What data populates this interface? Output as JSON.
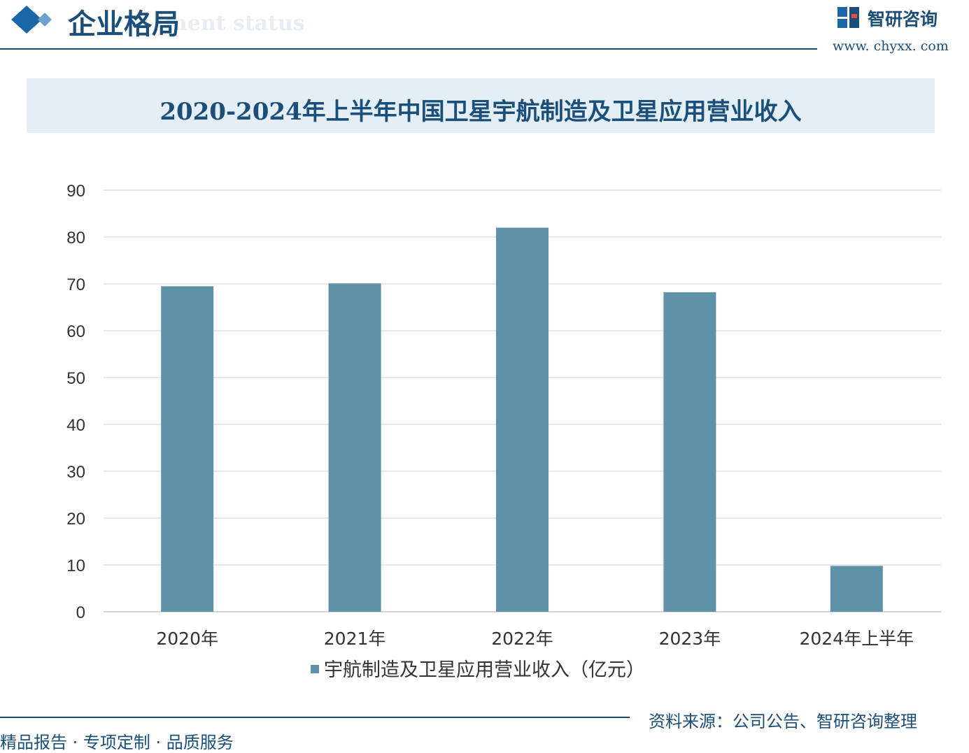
{
  "header": {
    "section_title": "企业格局",
    "section_subtitle": "ment status",
    "logo_text": "智研咨询",
    "logo_url": "www. chyxx. com"
  },
  "footer": {
    "source": "资料来源：公司公告、智研咨询整理",
    "slogan": "精品报告 · 专项定制 · 品质服务"
  },
  "colors": {
    "bar": "#5f92a8",
    "accent": "#1b4e79",
    "band": "#e3eef6"
  },
  "chart_data": {
    "type": "bar",
    "title": "2020-2024年上半年中国卫星宇航制造及卫星应用营业收入",
    "categories": [
      "2020年",
      "2021年",
      "2022年",
      "2023年",
      "2024年上半年"
    ],
    "series": [
      {
        "name": "宇航制造及卫星应用营业收入（亿元）",
        "values": [
          69.5,
          70.1,
          82,
          68.2,
          9.8
        ]
      }
    ],
    "y_ticks": [
      "0",
      "10",
      "20",
      "30",
      "40",
      "50",
      "60",
      "70",
      "80",
      "90"
    ],
    "ylim": [
      0,
      90
    ],
    "grid": true,
    "legend_position": "bottom"
  }
}
